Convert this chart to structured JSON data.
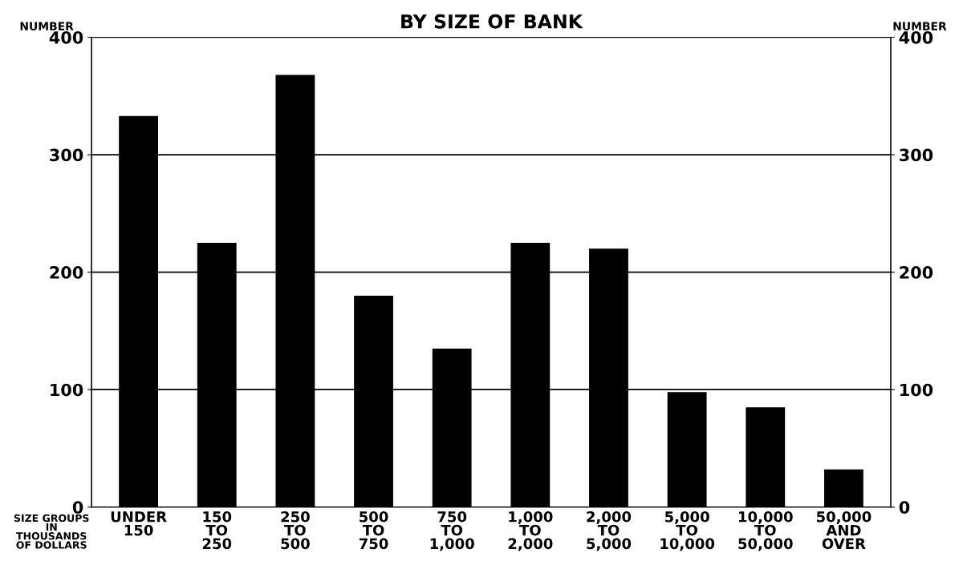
{
  "chart_data": {
    "type": "bar",
    "title": "BY SIZE OF BANK",
    "xlabel": "SIZE GROUPS\nIN\nTHOUSANDS\nOF DOLLARS",
    "ylabel": "NUMBER",
    "y2label": "NUMBER",
    "categories": [
      "UNDER\n150",
      "150\nTO\n250",
      "250\nTO\n500",
      "500\nTO\n750",
      "750\nTO\n1,000",
      "1,000\nTO\n2,000",
      "2,000\nTO\n5,000",
      "5,000\nTO\n10,000",
      "10,000\nTO\n50,000",
      "50,000\nAND\nOVER"
    ],
    "values": [
      333,
      225,
      368,
      180,
      135,
      225,
      220,
      98,
      85,
      32
    ],
    "color": "#000000",
    "ylim": [
      0,
      400
    ],
    "yticks": [
      0,
      100,
      200,
      300,
      400
    ],
    "y2lim": [
      0,
      400
    ],
    "y2ticks": [
      0,
      100,
      200,
      300,
      400
    ],
    "grid": "y"
  }
}
